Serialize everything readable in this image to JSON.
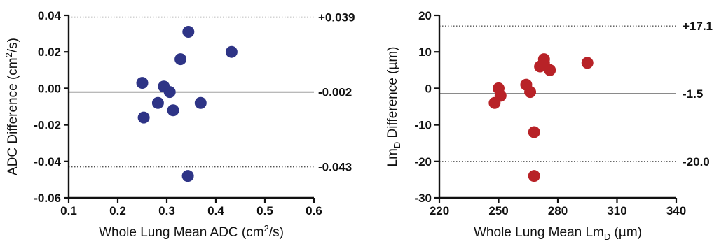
{
  "chart_data": [
    {
      "type": "scatter",
      "title": "",
      "xlabel": {
        "main": "Whole Lung Mean ADC (cm",
        "sup": "2",
        "end": "/s)"
      },
      "ylabel": {
        "main": "ADC Difference (cm",
        "sup": "2",
        "end": "/s)"
      },
      "xlim": [
        0.1,
        0.6
      ],
      "ylim": [
        -0.06,
        0.04
      ],
      "xticks": [
        0.1,
        0.2,
        0.3,
        0.4,
        0.5,
        0.6
      ],
      "xtick_labels": [
        "0.1",
        "0.2",
        "0.3",
        "0.4",
        "0.5",
        "0.6"
      ],
      "yticks": [
        -0.06,
        -0.04,
        -0.02,
        0.0,
        0.02,
        0.04
      ],
      "ytick_labels": [
        "-0.06",
        "-0.04",
        "-0.02",
        "0.00",
        "0.02",
        "0.04"
      ],
      "point_color": "#2e3486",
      "points": [
        {
          "x": 0.25,
          "y": 0.003
        },
        {
          "x": 0.253,
          "y": -0.016
        },
        {
          "x": 0.282,
          "y": -0.008
        },
        {
          "x": 0.294,
          "y": 0.001
        },
        {
          "x": 0.306,
          "y": -0.002
        },
        {
          "x": 0.313,
          "y": -0.012
        },
        {
          "x": 0.328,
          "y": 0.016
        },
        {
          "x": 0.344,
          "y": 0.031
        },
        {
          "x": 0.343,
          "y": -0.048
        },
        {
          "x": 0.369,
          "y": -0.008
        },
        {
          "x": 0.432,
          "y": 0.02
        }
      ],
      "reference_lines": [
        {
          "kind": "upper-limit",
          "y": 0.039,
          "label": "+0.039",
          "style": "dotted"
        },
        {
          "kind": "mean",
          "y": -0.002,
          "label": "-0.002",
          "style": "solid"
        },
        {
          "kind": "lower-limit",
          "y": -0.043,
          "label": "-0.043",
          "style": "dotted"
        }
      ],
      "grid": false,
      "legend": "none"
    },
    {
      "type": "scatter",
      "title": "",
      "xlabel": {
        "main": "Whole Lung Mean Lm",
        "sub": "D",
        "end": " (µm)"
      },
      "ylabel": {
        "main": "Lm",
        "sub": "D",
        "end": " Difference (µm)"
      },
      "xlim": [
        220,
        340
      ],
      "ylim": [
        -30,
        20
      ],
      "xticks": [
        220,
        250,
        280,
        310,
        340
      ],
      "xtick_labels": [
        "220",
        "250",
        "280",
        "310",
        "340"
      ],
      "yticks": [
        -30,
        -20,
        -10,
        0,
        10,
        20
      ],
      "ytick_labels": [
        "-30",
        "-20",
        "-10",
        "0",
        "10",
        "20"
      ],
      "point_color": "#b82227",
      "points": [
        {
          "x": 248,
          "y": -4
        },
        {
          "x": 250,
          "y": 0
        },
        {
          "x": 251,
          "y": -2
        },
        {
          "x": 264,
          "y": 1
        },
        {
          "x": 266,
          "y": -1
        },
        {
          "x": 268,
          "y": -12
        },
        {
          "x": 268,
          "y": -24
        },
        {
          "x": 271,
          "y": 6
        },
        {
          "x": 273,
          "y": 8
        },
        {
          "x": 273,
          "y": 7
        },
        {
          "x": 276,
          "y": 5
        },
        {
          "x": 295,
          "y": 7
        }
      ],
      "reference_lines": [
        {
          "kind": "upper-limit",
          "y": 17.1,
          "label": "+17.1",
          "style": "dotted"
        },
        {
          "kind": "mean",
          "y": -1.5,
          "label": "-1.5",
          "style": "solid"
        },
        {
          "kind": "lower-limit",
          "y": -20.0,
          "label": "-20.0",
          "style": "dotted"
        }
      ],
      "grid": false,
      "legend": "none"
    }
  ]
}
